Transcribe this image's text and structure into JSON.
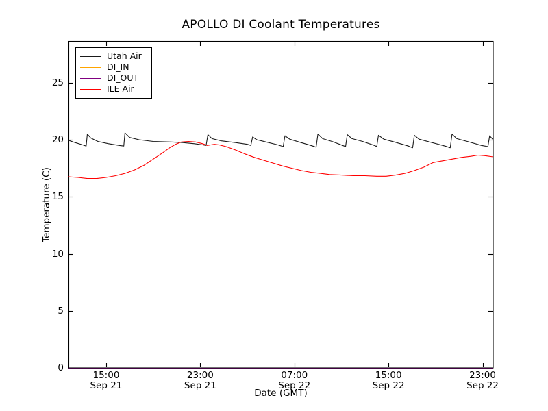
{
  "window": {
    "background": "#ffffff"
  },
  "legend": {
    "position": "upper-left",
    "items": [
      {
        "label": "Utah Air",
        "color": "#1a1a1a"
      },
      {
        "label": "DI_IN",
        "color": "#ffa500"
      },
      {
        "label": "DI_OUT",
        "color": "#800080"
      },
      {
        "label": "ILE Air",
        "color": "#ff0000"
      }
    ]
  },
  "chart_data": {
    "type": "line",
    "title": "APOLLO DI Coolant Temperatures",
    "xlabel": "Date (GMT)",
    "ylabel": "Temperature (C)",
    "grid": false,
    "legend_position": "upper left",
    "x_unit": "hours since Sep 21 00:00 GMT",
    "xlim": [
      11.8,
      47.9
    ],
    "ylim": [
      0,
      28.65
    ],
    "y_ticks": [
      {
        "value": 0,
        "label": "0"
      },
      {
        "value": 5,
        "label": "5"
      },
      {
        "value": 10,
        "label": "10"
      },
      {
        "value": 15,
        "label": "15"
      },
      {
        "value": 20,
        "label": "20"
      },
      {
        "value": 25,
        "label": "25"
      }
    ],
    "x_ticks": [
      {
        "hours": 15,
        "time": "15:00",
        "date": "Sep 21"
      },
      {
        "hours": 23,
        "time": "23:00",
        "date": "Sep 21"
      },
      {
        "hours": 31,
        "time": "07:00",
        "date": "Sep 22"
      },
      {
        "hours": 39,
        "time": "15:00",
        "date": "Sep 22"
      },
      {
        "hours": 47,
        "time": "23:00",
        "date": "Sep 22"
      }
    ],
    "series": [
      {
        "name": "Utah Air",
        "color": "#1a1a1a",
        "points": [
          [
            11.8,
            19.95
          ],
          [
            12.2,
            19.8
          ],
          [
            13.0,
            19.55
          ],
          [
            13.3,
            19.45
          ],
          [
            13.4,
            20.5
          ],
          [
            13.7,
            20.15
          ],
          [
            14.3,
            19.85
          ],
          [
            15.2,
            19.65
          ],
          [
            16.1,
            19.5
          ],
          [
            16.5,
            19.45
          ],
          [
            16.6,
            20.6
          ],
          [
            17.0,
            20.2
          ],
          [
            17.8,
            20.0
          ],
          [
            19.0,
            19.85
          ],
          [
            20.5,
            19.8
          ],
          [
            21.5,
            19.75
          ],
          [
            22.5,
            19.65
          ],
          [
            23.2,
            19.55
          ],
          [
            23.5,
            19.5
          ],
          [
            23.65,
            20.45
          ],
          [
            24.0,
            20.1
          ],
          [
            24.8,
            19.9
          ],
          [
            26.0,
            19.75
          ],
          [
            27.0,
            19.6
          ],
          [
            27.3,
            19.5
          ],
          [
            27.45,
            20.25
          ],
          [
            27.8,
            20.0
          ],
          [
            28.6,
            19.8
          ],
          [
            29.6,
            19.55
          ],
          [
            30.05,
            19.4
          ],
          [
            30.2,
            20.35
          ],
          [
            30.6,
            20.05
          ],
          [
            31.4,
            19.8
          ],
          [
            32.4,
            19.5
          ],
          [
            32.85,
            19.35
          ],
          [
            33.0,
            20.5
          ],
          [
            33.4,
            20.1
          ],
          [
            34.2,
            19.85
          ],
          [
            35.1,
            19.5
          ],
          [
            35.35,
            19.4
          ],
          [
            35.5,
            20.45
          ],
          [
            35.9,
            20.1
          ],
          [
            36.8,
            19.85
          ],
          [
            37.8,
            19.5
          ],
          [
            38.0,
            19.4
          ],
          [
            38.15,
            20.4
          ],
          [
            38.6,
            20.05
          ],
          [
            39.5,
            19.8
          ],
          [
            40.7,
            19.45
          ],
          [
            41.05,
            19.3
          ],
          [
            41.2,
            20.4
          ],
          [
            41.6,
            20.05
          ],
          [
            42.5,
            19.8
          ],
          [
            43.8,
            19.45
          ],
          [
            44.25,
            19.3
          ],
          [
            44.4,
            20.5
          ],
          [
            44.8,
            20.1
          ],
          [
            45.7,
            19.85
          ],
          [
            46.9,
            19.5
          ],
          [
            47.45,
            19.4
          ],
          [
            47.6,
            20.35
          ],
          [
            47.9,
            20.0
          ]
        ]
      },
      {
        "name": "DI_IN",
        "color": "#ffa500",
        "points": [
          [
            11.8,
            0
          ],
          [
            47.9,
            0
          ]
        ]
      },
      {
        "name": "DI_OUT",
        "color": "#800080",
        "points": [
          [
            11.8,
            0
          ],
          [
            47.9,
            0
          ]
        ]
      },
      {
        "name": "ILE Air",
        "color": "#ff0000",
        "points": [
          [
            11.8,
            16.75
          ],
          [
            12.6,
            16.7
          ],
          [
            13.4,
            16.6
          ],
          [
            14.2,
            16.6
          ],
          [
            15.0,
            16.7
          ],
          [
            15.8,
            16.85
          ],
          [
            16.6,
            17.05
          ],
          [
            17.4,
            17.35
          ],
          [
            18.2,
            17.75
          ],
          [
            19.0,
            18.3
          ],
          [
            19.8,
            18.85
          ],
          [
            20.4,
            19.3
          ],
          [
            20.9,
            19.6
          ],
          [
            21.4,
            19.8
          ],
          [
            22.0,
            19.85
          ],
          [
            22.6,
            19.8
          ],
          [
            23.2,
            19.65
          ],
          [
            23.6,
            19.5
          ],
          [
            23.9,
            19.55
          ],
          [
            24.2,
            19.6
          ],
          [
            24.6,
            19.55
          ],
          [
            25.2,
            19.4
          ],
          [
            26.0,
            19.1
          ],
          [
            26.8,
            18.75
          ],
          [
            27.6,
            18.45
          ],
          [
            28.4,
            18.2
          ],
          [
            29.2,
            17.95
          ],
          [
            30.0,
            17.7
          ],
          [
            30.8,
            17.5
          ],
          [
            31.6,
            17.3
          ],
          [
            32.4,
            17.15
          ],
          [
            33.2,
            17.05
          ],
          [
            34.0,
            16.95
          ],
          [
            35.0,
            16.9
          ],
          [
            36.0,
            16.85
          ],
          [
            37.0,
            16.85
          ],
          [
            38.0,
            16.8
          ],
          [
            38.8,
            16.8
          ],
          [
            39.6,
            16.9
          ],
          [
            40.4,
            17.05
          ],
          [
            41.2,
            17.3
          ],
          [
            42.0,
            17.6
          ],
          [
            42.8,
            18.0
          ],
          [
            43.6,
            18.15
          ],
          [
            44.4,
            18.3
          ],
          [
            45.2,
            18.45
          ],
          [
            46.0,
            18.55
          ],
          [
            46.6,
            18.65
          ],
          [
            47.2,
            18.6
          ],
          [
            47.9,
            18.5
          ]
        ]
      }
    ]
  }
}
